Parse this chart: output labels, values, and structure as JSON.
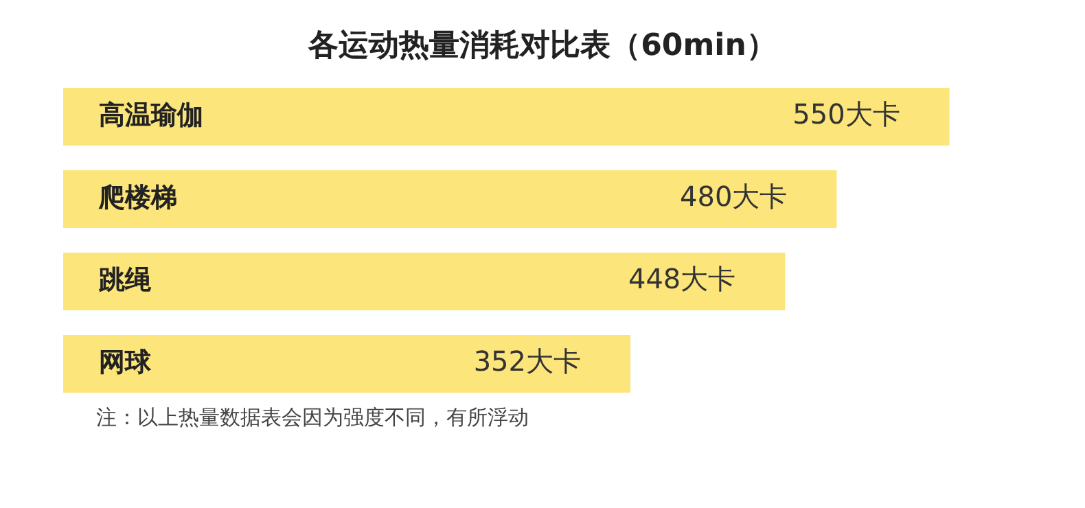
{
  "chart_data": {
    "type": "bar",
    "orientation": "horizontal",
    "title": "各运动热量消耗对比表（60min）",
    "categories": [
      "高温瑜伽",
      "爬楼梯",
      "跳绳",
      "网球"
    ],
    "values": [
      550,
      480,
      448,
      352
    ],
    "value_labels": [
      "550大卡",
      "480大卡",
      "448大卡",
      "352大卡"
    ],
    "color": "#fce57a",
    "legend": false,
    "annotations": [
      "注：以上热量数据表会因为强度不同，有所浮动"
    ]
  }
}
